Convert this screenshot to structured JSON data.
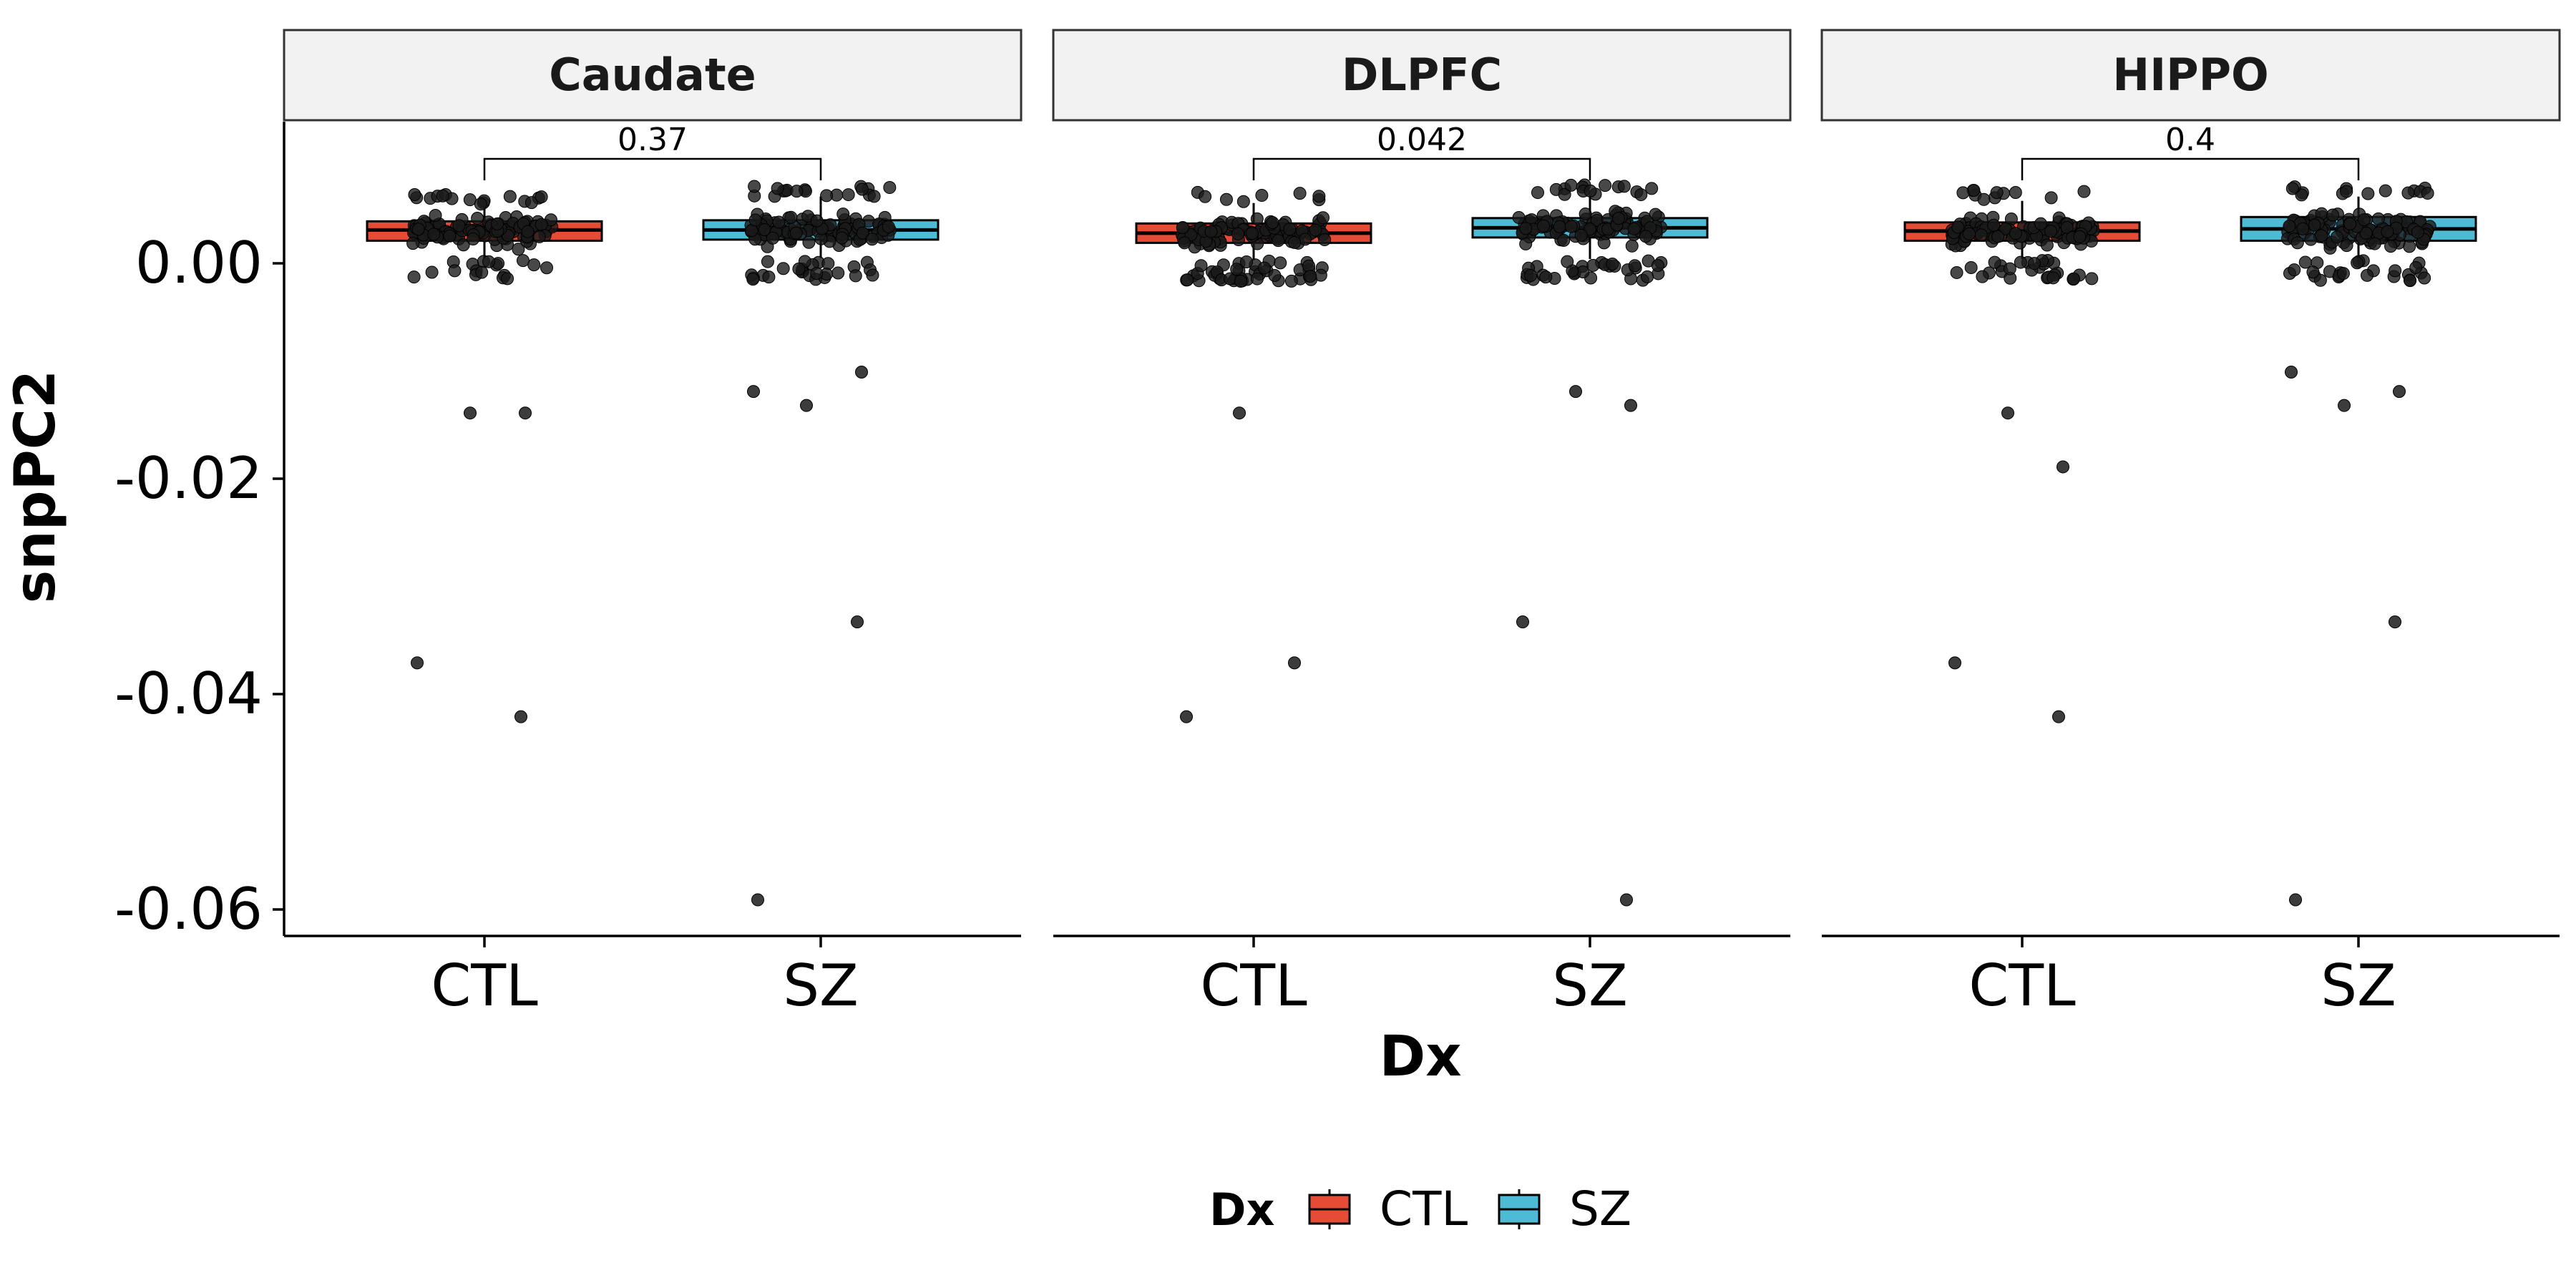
{
  "chart_data": {
    "type": "box",
    "ylabel": "snpPC2",
    "xlabel": "Dx",
    "yticks": [
      "0.00",
      "-0.02",
      "-0.04",
      "-0.06"
    ],
    "ytick_values": [
      0.0,
      -0.02,
      -0.04,
      -0.06
    ],
    "ylim": [
      -0.0625,
      0.0135
    ],
    "categories": [
      "CTL",
      "SZ"
    ],
    "colors": {
      "CTL": "#E64B35",
      "SZ": "#4DBBD5"
    },
    "legend": {
      "title": "Dx",
      "entries": [
        "CTL",
        "SZ"
      ],
      "position": "bottom"
    },
    "grid": false,
    "facets": [
      {
        "name": "Caudate",
        "pvalue": "0.37",
        "boxes": {
          "CTL": {
            "q1": 0.0021,
            "median": 0.0031,
            "q3": 0.0039,
            "whisker_low": 0.0005,
            "whisker_high": 0.0055
          },
          "SZ": {
            "q1": 0.0022,
            "median": 0.0031,
            "q3": 0.004,
            "whisker_low": 0.0005,
            "whisker_high": 0.0062
          }
        },
        "outliers": {
          "CTL": [
            -0.0139,
            -0.0139,
            -0.0371,
            -0.0421
          ],
          "SZ": [
            -0.0132,
            -0.0101,
            -0.0119,
            -0.0333,
            -0.0591
          ]
        }
      },
      {
        "name": "DLPFC",
        "pvalue": "0.042",
        "boxes": {
          "CTL": {
            "q1": 0.0019,
            "median": 0.0028,
            "q3": 0.0037,
            "whisker_low": 0.0003,
            "whisker_high": 0.0056
          },
          "SZ": {
            "q1": 0.0024,
            "median": 0.0033,
            "q3": 0.0042,
            "whisker_low": 0.0004,
            "whisker_high": 0.0063
          }
        },
        "outliers": {
          "CTL": [
            -0.0139,
            -0.0371,
            -0.0421
          ],
          "SZ": [
            -0.0119,
            -0.0132,
            -0.0333,
            -0.0591
          ]
        }
      },
      {
        "name": "HIPPO",
        "pvalue": "0.4",
        "boxes": {
          "CTL": {
            "q1": 0.0021,
            "median": 0.003,
            "q3": 0.0038,
            "whisker_low": 0.0004,
            "whisker_high": 0.0058
          },
          "SZ": {
            "q1": 0.0021,
            "median": 0.0032,
            "q3": 0.0043,
            "whisker_low": 0.0003,
            "whisker_high": 0.0062
          }
        },
        "outliers": {
          "CTL": [
            -0.0139,
            -0.0189,
            -0.0371,
            -0.0421
          ],
          "SZ": [
            -0.0132,
            -0.0119,
            -0.0101,
            -0.0333,
            -0.0591
          ]
        }
      }
    ]
  }
}
